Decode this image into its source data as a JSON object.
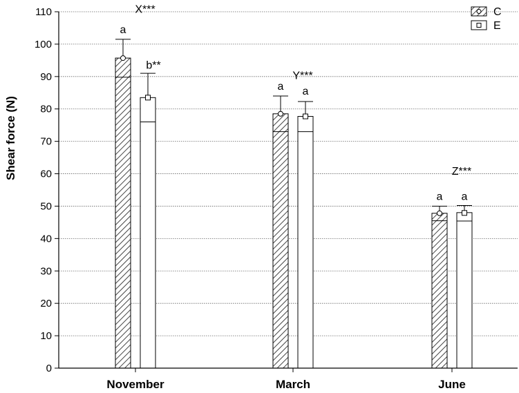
{
  "chart_data": {
    "type": "bar",
    "title": "",
    "xlabel": "",
    "ylabel": "Shear force (N)",
    "categories": [
      "November",
      "March",
      "June"
    ],
    "ylim": [
      0,
      110
    ],
    "yticks": [
      0,
      10,
      20,
      30,
      40,
      50,
      60,
      70,
      80,
      90,
      100,
      110
    ],
    "grid": "horizontal-dotted",
    "legend_position": "top-right",
    "series": [
      {
        "name": "C",
        "pattern": "hatched",
        "marker": "circle",
        "mean": [
          95.7,
          78.5,
          47.8
        ],
        "bar_top": [
          95.7,
          78.5,
          47.8
        ],
        "error_upper": [
          101.5,
          84,
          50
        ],
        "error_lower": [
          89.8,
          73,
          45.5
        ],
        "letters": [
          "a",
          "a",
          "a"
        ],
        "letter_y": [
          104.5,
          87,
          53
        ]
      },
      {
        "name": "E",
        "pattern": "open",
        "marker": "square",
        "mean": [
          83.5,
          77.7,
          47.9
        ],
        "bar_top": [
          83.5,
          77.7,
          48
        ],
        "error_upper": [
          91,
          82.3,
          50.2
        ],
        "error_lower": [
          76,
          73,
          45.4
        ],
        "letters": [
          "b**",
          "a",
          "a"
        ],
        "letter_y": [
          93.5,
          85.5,
          53
        ]
      }
    ],
    "group_annotations": [
      {
        "category": "November",
        "text": "X***",
        "y": 111
      },
      {
        "category": "March",
        "text": "Y***",
        "y": 90.5
      },
      {
        "category": "June",
        "text": "Z***",
        "y": 61
      }
    ]
  }
}
